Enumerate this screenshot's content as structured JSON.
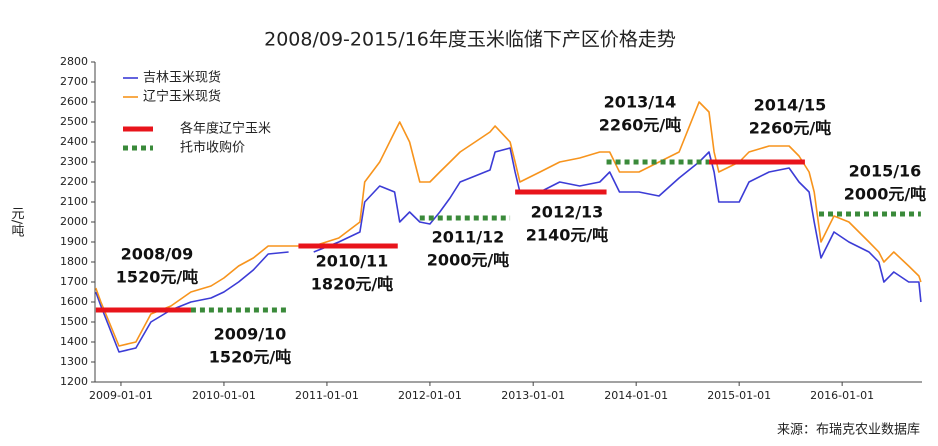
{
  "chart_data": {
    "type": "line",
    "title": "2008/09-2015/16年度玉米临储下产区价格走势",
    "ylabel": "元/吨",
    "source": "来源：布瑞克农业数据库",
    "ylim": [
      1200,
      2800
    ],
    "yticks": [
      1200,
      1300,
      1400,
      1500,
      1600,
      1700,
      1800,
      1900,
      2000,
      2100,
      2200,
      2300,
      2400,
      2500,
      2600,
      2700,
      2800
    ],
    "xlim": [
      "2008-10-01",
      "2016-10-10"
    ],
    "xticks": [
      "2009-01-01",
      "2010-01-01",
      "2011-01-01",
      "2012-01-01",
      "2013-01-01",
      "2014-01-01",
      "2015-01-01",
      "2016-01-01"
    ],
    "legend": "upper left",
    "x": [
      "2008-10-04",
      "2008-10-22",
      "2008-12-25",
      "2009-02-23",
      "2009-04-17",
      "2009-06-27",
      "2009-09-06",
      "2009-11-16",
      "2010-01-01",
      "2010-02-22",
      "2010-04-15",
      "2010-06-07",
      "2010-08-18",
      "2010-09-22",
      "2010-11-15",
      "2011-02-12",
      "2011-04-28",
      "2011-05-15",
      "2011-07-07",
      "2011-08-29",
      "2011-09-16",
      "2011-10-21",
      "2011-11-26",
      "2012-01-01",
      "2012-02-05",
      "2012-03-12",
      "2012-04-17",
      "2012-06-09",
      "2012-08-01",
      "2012-08-19",
      "2012-10-11",
      "2012-10-29",
      "2012-11-15",
      "2013-01-25",
      "2013-04-05",
      "2013-06-15",
      "2013-08-25",
      "2013-09-29",
      "2013-11-03",
      "2014-01-11",
      "2014-03-23",
      "2014-06-02",
      "2014-08-12",
      "2014-09-16",
      "2014-10-04",
      "2014-10-21",
      "2015-01-01",
      "2015-02-05",
      "2015-04-17",
      "2015-06-27",
      "2015-08-01",
      "2015-09-06",
      "2015-09-24",
      "2015-10-18",
      "2015-12-03",
      "2016-01-25",
      "2016-04-05",
      "2016-05-10",
      "2016-05-28",
      "2016-07-02",
      "2016-08-24",
      "2016-09-29",
      "2016-10-06"
    ],
    "series": [
      {
        "name": "吉林玉米现货",
        "color": "#3c3cd6",
        "values": [
          1650,
          1580,
          1350,
          1370,
          1500,
          1560,
          1600,
          1620,
          1650,
          1700,
          1760,
          1840,
          1850,
          null,
          1850,
          1900,
          1950,
          2100,
          2180,
          2150,
          2000,
          2050,
          2000,
          1990,
          2050,
          2120,
          2200,
          2230,
          2260,
          2350,
          2370,
          2250,
          2150,
          2150,
          2200,
          2180,
          2200,
          2250,
          2150,
          2150,
          2130,
          2220,
          2300,
          2350,
          2250,
          2100,
          2100,
          2200,
          2250,
          2270,
          2200,
          2150,
          2000,
          1820,
          1950,
          1900,
          1850,
          1800,
          1700,
          1750,
          1700,
          1700,
          1600
        ]
      },
      {
        "name": "辽宁玉米现货",
        "color": "#f7941d",
        "values": [
          1670,
          1600,
          1380,
          1400,
          1540,
          1580,
          1650,
          1680,
          1720,
          1780,
          1820,
          1880,
          1880,
          1880,
          1880,
          1920,
          2000,
          2200,
          2300,
          2450,
          2500,
          2400,
          2200,
          2200,
          2250,
          2300,
          2350,
          2400,
          2450,
          2480,
          2400,
          2300,
          2200,
          2250,
          2300,
          2320,
          2350,
          2350,
          2250,
          2250,
          2300,
          2350,
          2600,
          2550,
          2350,
          2250,
          2300,
          2350,
          2380,
          2380,
          2330,
          2250,
          2150,
          1900,
          2030,
          2000,
          1900,
          1850,
          1800,
          1850,
          1780,
          1730,
          1700
        ]
      },
      {
        "name": "各年度辽宁玉米",
        "color": "#e8141b",
        "style": "solid",
        "segments": [
          {
            "start": "2008-10-04",
            "end": "2009-09-06",
            "value": 1560
          },
          {
            "start": "2010-09-22",
            "end": "2011-09-09",
            "value": 1880
          },
          {
            "start": "2012-10-29",
            "end": "2013-09-18",
            "value": 2150
          },
          {
            "start": "2014-09-16",
            "end": "2015-08-22",
            "value": 2300
          }
        ]
      },
      {
        "name": "托市收购价",
        "color": "#3a8a3a",
        "style": "dotted",
        "segments": [
          {
            "start": "2009-09-06",
            "end": "2010-08-18",
            "value": 1560
          },
          {
            "start": "2011-11-26",
            "end": "2012-10-11",
            "value": 2020
          },
          {
            "start": "2013-09-18",
            "end": "2014-09-16",
            "value": 2300
          },
          {
            "start": "2015-10-11",
            "end": "2016-10-06",
            "value": 2040
          }
        ]
      }
    ],
    "annotations": [
      [
        "2008/09",
        "1520元/吨"
      ],
      [
        "2009/10",
        "1520元/吨"
      ],
      [
        "2010/11",
        "1820元/吨"
      ],
      [
        "2011/12",
        "2000元/吨"
      ],
      [
        "2012/13",
        "2140元/吨"
      ],
      [
        "2013/14",
        "2260元/吨"
      ],
      [
        "2014/15",
        "2260元/吨"
      ],
      [
        "2015/16",
        "2000元/吨"
      ]
    ]
  }
}
